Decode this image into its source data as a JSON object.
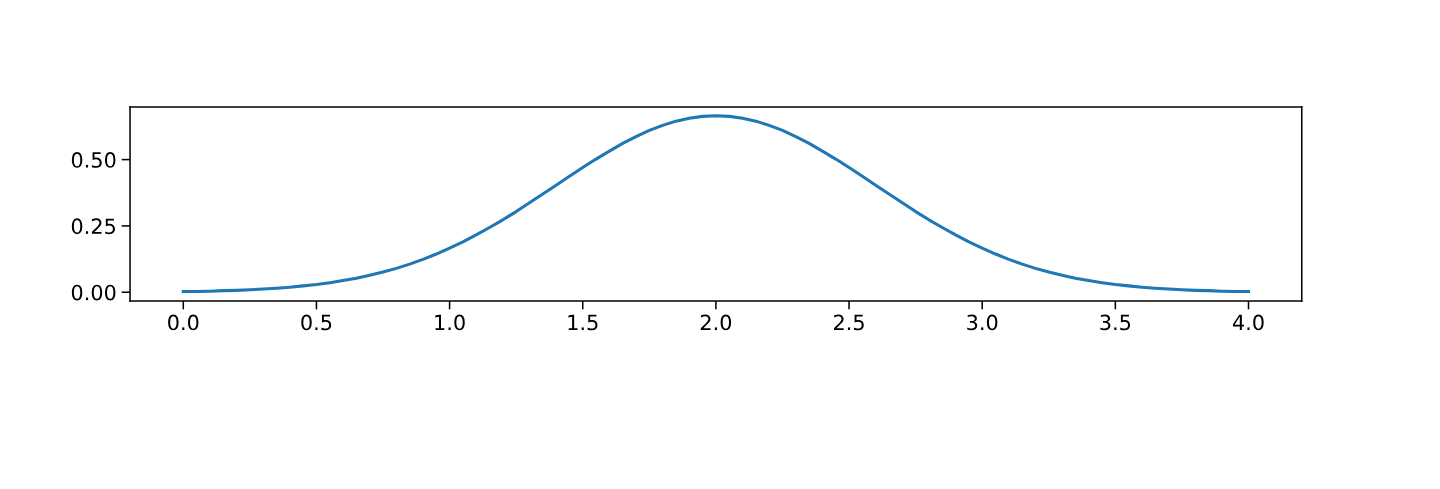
{
  "chart_data": {
    "type": "line",
    "x": [
      0.0,
      0.05,
      0.1,
      0.15,
      0.2,
      0.25,
      0.3,
      0.35,
      0.4,
      0.45,
      0.5,
      0.55,
      0.6,
      0.65,
      0.7,
      0.75,
      0.8,
      0.85,
      0.9,
      0.95,
      1.0,
      1.05,
      1.1,
      1.15,
      1.2,
      1.25,
      1.3,
      1.35,
      1.4,
      1.45,
      1.5,
      1.55,
      1.6,
      1.65,
      1.7,
      1.75,
      1.8,
      1.85,
      1.9,
      1.95,
      2.0,
      2.05,
      2.1,
      2.15,
      2.2,
      2.25,
      2.3,
      2.35,
      2.4,
      2.45,
      2.5,
      2.55,
      2.6,
      2.65,
      2.7,
      2.75,
      2.8,
      2.85,
      2.9,
      2.95,
      3.0,
      3.05,
      3.1,
      3.15,
      3.2,
      3.25,
      3.3,
      3.35,
      3.4,
      3.45,
      3.5,
      3.55,
      3.6,
      3.65,
      3.7,
      3.75,
      3.8,
      3.85,
      3.9,
      3.95,
      4.0
    ],
    "series": [
      {
        "color": "#1f77b4",
        "values": [
          0.003,
          0.003,
          0.004,
          0.006,
          0.007,
          0.009,
          0.012,
          0.015,
          0.019,
          0.024,
          0.029,
          0.036,
          0.044,
          0.053,
          0.064,
          0.076,
          0.09,
          0.106,
          0.124,
          0.144,
          0.166,
          0.19,
          0.216,
          0.244,
          0.273,
          0.304,
          0.337,
          0.37,
          0.403,
          0.437,
          0.47,
          0.502,
          0.532,
          0.561,
          0.587,
          0.61,
          0.629,
          0.645,
          0.656,
          0.663,
          0.665,
          0.663,
          0.656,
          0.645,
          0.629,
          0.61,
          0.587,
          0.561,
          0.532,
          0.502,
          0.47,
          0.437,
          0.403,
          0.37,
          0.337,
          0.304,
          0.273,
          0.244,
          0.216,
          0.19,
          0.166,
          0.144,
          0.124,
          0.106,
          0.09,
          0.076,
          0.064,
          0.053,
          0.044,
          0.036,
          0.029,
          0.024,
          0.019,
          0.015,
          0.012,
          0.009,
          0.007,
          0.006,
          0.004,
          0.003,
          0.003
        ]
      }
    ],
    "xlim": [
      -0.2,
      4.2
    ],
    "ylim": [
      -0.033,
      0.698
    ],
    "xticks": [
      {
        "value": 0,
        "label": "0.0"
      },
      {
        "value": 0.5,
        "label": "0.5"
      },
      {
        "value": 1,
        "label": "1.0"
      },
      {
        "value": 1.5,
        "label": "1.5"
      },
      {
        "value": 2,
        "label": "2.0"
      },
      {
        "value": 2.5,
        "label": "2.5"
      },
      {
        "value": 3,
        "label": "3.0"
      },
      {
        "value": 3.5,
        "label": "3.5"
      },
      {
        "value": 4,
        "label": "4.0"
      }
    ],
    "yticks": [
      {
        "value": 0,
        "label": "0.00"
      },
      {
        "value": 0.25,
        "label": "0.25"
      },
      {
        "value": 0.5,
        "label": "0.50"
      }
    ],
    "grid": false,
    "marker": "none",
    "line_style": "solid"
  }
}
